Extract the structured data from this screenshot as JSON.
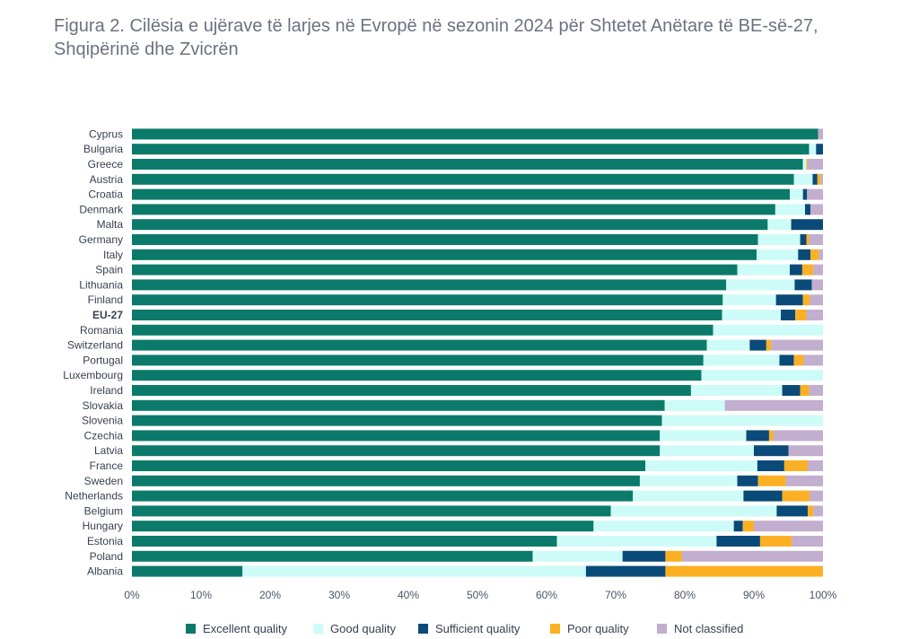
{
  "title": "Figura 2. Cilësia e ujërave të larjes në Evropë në sezonin 2024 për Shtetet Anëtare të BE-së-27, Shqipërinë dhe Zvicrën",
  "colors": {
    "excellent": "#0b7a6a",
    "good": "#cdfbf8",
    "sufficient": "#0a4a78",
    "poor": "#fbb024",
    "not_classified": "#c2aece"
  },
  "chart_data": {
    "type": "bar",
    "orientation": "horizontal",
    "stacked": true,
    "title": "Figura 2. Cilësia e ujërave të larjes në Evropë në sezonin 2024 për Shtetet Anëtare të BE-së-27, Shqipërinë dhe Zvicrën",
    "xlabel": "",
    "ylabel": "",
    "xlim": [
      0,
      100
    ],
    "x_ticks": [
      "0%",
      "10%",
      "20%",
      "30%",
      "40%",
      "50%",
      "60%",
      "70%",
      "80%",
      "90%",
      "100%"
    ],
    "grid": false,
    "legend_position": "bottom",
    "highlight_category": "EU-27",
    "categories": [
      "Cyprus",
      "Bulgaria",
      "Greece",
      "Austria",
      "Croatia",
      "Denmark",
      "Malta",
      "Germany",
      "Italy",
      "Spain",
      "Lithuania",
      "Finland",
      "EU-27",
      "Romania",
      "Switzerland",
      "Portugal",
      "Luxembourg",
      "Ireland",
      "Slovakia",
      "Slovenia",
      "Czechia",
      "Latvia",
      "France",
      "Sweden",
      "Netherlands",
      "Belgium",
      "Hungary",
      "Estonia",
      "Poland",
      "Albania"
    ],
    "series": [
      {
        "name": "Excellent quality",
        "color_key": "excellent",
        "values": [
          99.3,
          98.0,
          97.1,
          95.8,
          95.2,
          93.1,
          92.0,
          90.6,
          90.4,
          87.6,
          86.0,
          85.5,
          85.4,
          84.1,
          83.2,
          82.7,
          82.4,
          80.9,
          77.1,
          76.7,
          76.4,
          76.4,
          74.3,
          73.5,
          72.5,
          69.3,
          66.8,
          61.5,
          58.0,
          16.0
        ]
      },
      {
        "name": "Good quality",
        "color_key": "good",
        "values": [
          0.0,
          1.0,
          0.5,
          2.7,
          1.9,
          4.3,
          3.4,
          6.1,
          6.0,
          7.6,
          9.9,
          7.7,
          8.5,
          15.9,
          6.2,
          11.0,
          17.6,
          13.2,
          8.7,
          23.3,
          12.5,
          13.6,
          16.2,
          14.1,
          16.0,
          24.0,
          20.3,
          23.1,
          13.0,
          49.7
        ]
      },
      {
        "name": "Sufficient quality",
        "color_key": "sufficient",
        "values": [
          0.0,
          1.0,
          0.0,
          0.7,
          0.6,
          0.8,
          4.6,
          0.9,
          1.8,
          1.8,
          2.5,
          3.9,
          2.1,
          0.0,
          2.4,
          2.1,
          0.0,
          2.6,
          0.0,
          0.0,
          3.3,
          5.0,
          3.9,
          3.0,
          5.6,
          4.5,
          1.3,
          6.3,
          6.2,
          11.5
        ]
      },
      {
        "name": "Poor quality",
        "color_key": "poor",
        "values": [
          0.0,
          0.0,
          0.2,
          0.5,
          0.0,
          0.0,
          0.0,
          0.4,
          1.2,
          1.6,
          0.0,
          1.0,
          1.6,
          0.0,
          0.7,
          1.4,
          0.0,
          1.3,
          0.0,
          0.0,
          0.6,
          0.0,
          3.4,
          4.0,
          4.0,
          0.8,
          1.6,
          4.6,
          2.4,
          22.8
        ]
      },
      {
        "name": "Not classified",
        "color_key": "not_classified",
        "values": [
          0.7,
          0.0,
          2.2,
          0.3,
          2.3,
          1.8,
          0.0,
          2.0,
          0.6,
          1.4,
          1.6,
          1.9,
          2.4,
          0.0,
          7.5,
          2.8,
          0.0,
          2.0,
          14.2,
          0.0,
          7.2,
          5.0,
          2.2,
          5.4,
          1.9,
          1.4,
          10.0,
          4.5,
          20.4,
          0.0
        ]
      }
    ]
  }
}
